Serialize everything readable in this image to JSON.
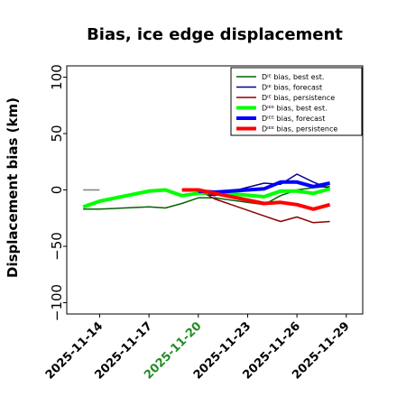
{
  "chart_data": {
    "type": "line",
    "title": "Bias, ice edge displacement",
    "ylabel": "Displacement bias (km)",
    "xlabel": "",
    "ylim": [
      -110,
      110
    ],
    "xlim": [
      "2025-11-12",
      "2025-11-30"
    ],
    "y_ticks": [
      -100,
      -50,
      0,
      50,
      100
    ],
    "y_tick_labels": [
      "−100",
      "−50",
      "0",
      "50",
      "100"
    ],
    "x_ticks": [
      "2025-11-14",
      "2025-11-17",
      "2025-11-20",
      "2025-11-23",
      "2025-11-26",
      "2025-11-29"
    ],
    "x_tick_colors": [
      "#000000",
      "#000000",
      "#228B22",
      "#000000",
      "#000000",
      "#000000"
    ],
    "grid": false,
    "legend_position": "top-right",
    "series": [
      {
        "name": "Dᴵᴱ bias, best est.",
        "color": "#006400",
        "width": 1.5,
        "points": [
          [
            "2025-11-13",
            -17
          ],
          [
            "2025-11-14",
            -17
          ],
          [
            "2025-11-17",
            -15
          ],
          [
            "2025-11-18",
            -16
          ],
          [
            "2025-11-19",
            -12
          ],
          [
            "2025-11-20",
            -7
          ],
          [
            "2025-11-21",
            -7
          ],
          [
            "2025-11-24",
            -13
          ],
          [
            "2025-11-25",
            -5
          ],
          [
            "2025-11-26",
            0
          ],
          [
            "2025-11-27",
            2
          ],
          [
            "2025-11-28",
            3
          ]
        ]
      },
      {
        "name": "Dᴵᴱ bias, forecast",
        "color": "#00008b",
        "width": 1.5,
        "points": [
          [
            "2025-11-20",
            -3
          ],
          [
            "2025-11-21",
            -5
          ],
          [
            "2025-11-24",
            6
          ],
          [
            "2025-11-25",
            5
          ],
          [
            "2025-11-26",
            14
          ],
          [
            "2025-11-27",
            7
          ],
          [
            "2025-11-28",
            1
          ]
        ]
      },
      {
        "name": "Dᴵᴱ bias, persistence",
        "color": "#8b0000",
        "width": 1.5,
        "points": [
          [
            "2025-11-20",
            0
          ],
          [
            "2025-11-21",
            -8
          ],
          [
            "2025-11-24",
            -23
          ],
          [
            "2025-11-25",
            -28
          ],
          [
            "2025-11-26",
            -24
          ],
          [
            "2025-11-27",
            -29
          ],
          [
            "2025-11-28",
            -28
          ]
        ]
      },
      {
        "name": "Dᴵᴱᴱ bias, best est.",
        "color": "#00ff00",
        "width": 4,
        "points": [
          [
            "2025-11-13",
            -15
          ],
          [
            "2025-11-14",
            -10
          ],
          [
            "2025-11-17",
            -1
          ],
          [
            "2025-11-18",
            0
          ],
          [
            "2025-11-19",
            -5
          ],
          [
            "2025-11-20",
            -3
          ],
          [
            "2025-11-21",
            -2
          ],
          [
            "2025-11-24",
            -6
          ],
          [
            "2025-11-25",
            -1
          ],
          [
            "2025-11-26",
            -1
          ],
          [
            "2025-11-27",
            -3
          ],
          [
            "2025-11-28",
            1
          ]
        ]
      },
      {
        "name": "Dᴵᴱᴱ bias, forecast",
        "color": "#0000ff",
        "width": 4,
        "points": [
          [
            "2025-11-20",
            -1
          ],
          [
            "2025-11-21",
            -2
          ],
          [
            "2025-11-24",
            1
          ],
          [
            "2025-11-25",
            7
          ],
          [
            "2025-11-26",
            7
          ],
          [
            "2025-11-27",
            3
          ],
          [
            "2025-11-28",
            6
          ]
        ]
      },
      {
        "name": "Dᴵᴱᴱ bias, persistence",
        "color": "#ff0000",
        "width": 4,
        "points": [
          [
            "2025-11-19",
            0
          ],
          [
            "2025-11-20",
            0
          ],
          [
            "2025-11-21",
            -3
          ],
          [
            "2025-11-24",
            -12
          ],
          [
            "2025-11-25",
            -11
          ],
          [
            "2025-11-26",
            -13
          ],
          [
            "2025-11-27",
            -17
          ],
          [
            "2025-11-28",
            -13
          ]
        ]
      },
      {
        "name": "",
        "color": "#808080",
        "width": 1.5,
        "points": [
          [
            "2025-11-13",
            0
          ],
          [
            "2025-11-14",
            0
          ]
        ]
      }
    ]
  }
}
